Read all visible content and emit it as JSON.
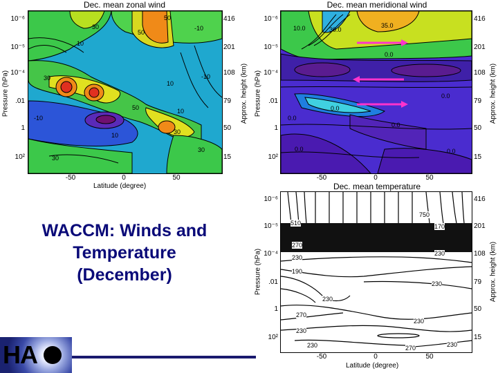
{
  "slide": {
    "title_lines": [
      "WACCM: Winds and",
      "Temperature",
      "(December)"
    ],
    "logo_text": "HA",
    "colors": {
      "title": "#0a0a78",
      "rule": "#1a1a6e"
    }
  },
  "arrows": {
    "color": "#ff33cc"
  },
  "chart_data": [
    {
      "type": "contour",
      "title": "Dec. mean zonal wind",
      "xlabel": "Latitude (degree)",
      "ylabel": "Pressure (hPa)",
      "y2label": "Approx. height (km)",
      "x_ticks": [
        "-50",
        "0",
        "50"
      ],
      "xlim": [
        -90,
        90
      ],
      "pressure_ticks": [
        "10⁻⁶",
        "10⁻⁵",
        "10⁻⁴",
        ".01",
        "1",
        "10²"
      ],
      "height_ticks": [
        "416",
        "201",
        "108",
        "79",
        "50",
        "15"
      ],
      "contour_labels": [
        "30",
        "50",
        "10",
        "-10",
        "10",
        "-10",
        "30",
        "50",
        "10",
        "30",
        "10",
        "30",
        "-10",
        "50",
        "30"
      ],
      "fill": "rainbow"
    },
    {
      "type": "contour",
      "title": "Dec. mean meridional wind",
      "xlabel": "",
      "ylabel": "Pressure (hPa)",
      "y2label": "Approx. height (km)",
      "x_ticks": [
        "-50",
        "0",
        "50"
      ],
      "xlim": [
        -90,
        90
      ],
      "pressure_ticks": [
        "10⁻⁶",
        "10⁻⁵",
        "10⁻⁴",
        ".01",
        "1",
        "10²"
      ],
      "height_ticks": [
        "416",
        "201",
        "108",
        "79",
        "50",
        "15"
      ],
      "contour_labels": [
        "10.0",
        "30.0",
        "35.0",
        "0.0",
        "0.0",
        "0.0",
        "0.0",
        "0.0",
        "0.0",
        "0.0"
      ],
      "fill": "rainbow"
    },
    {
      "type": "contour",
      "title": "Dec. mean temperature",
      "xlabel": "Latitude (degree)",
      "ylabel": "Pressure (hPa)",
      "y2label": "Approx. height (km)",
      "x_ticks": [
        "-50",
        "0",
        "50"
      ],
      "xlim": [
        -90,
        90
      ],
      "pressure_ticks": [
        "10⁻⁶",
        "10⁻⁵",
        "10⁻⁴",
        ".01",
        "1",
        "10²"
      ],
      "height_ticks": [
        "416",
        "201",
        "108",
        "79",
        "50",
        "15"
      ],
      "contour_labels": [
        "750",
        "510",
        "170",
        "270",
        "230",
        "230",
        "190",
        "230",
        "230",
        "270",
        "230",
        "230",
        "230",
        "230",
        "270"
      ],
      "fill": "none"
    }
  ]
}
